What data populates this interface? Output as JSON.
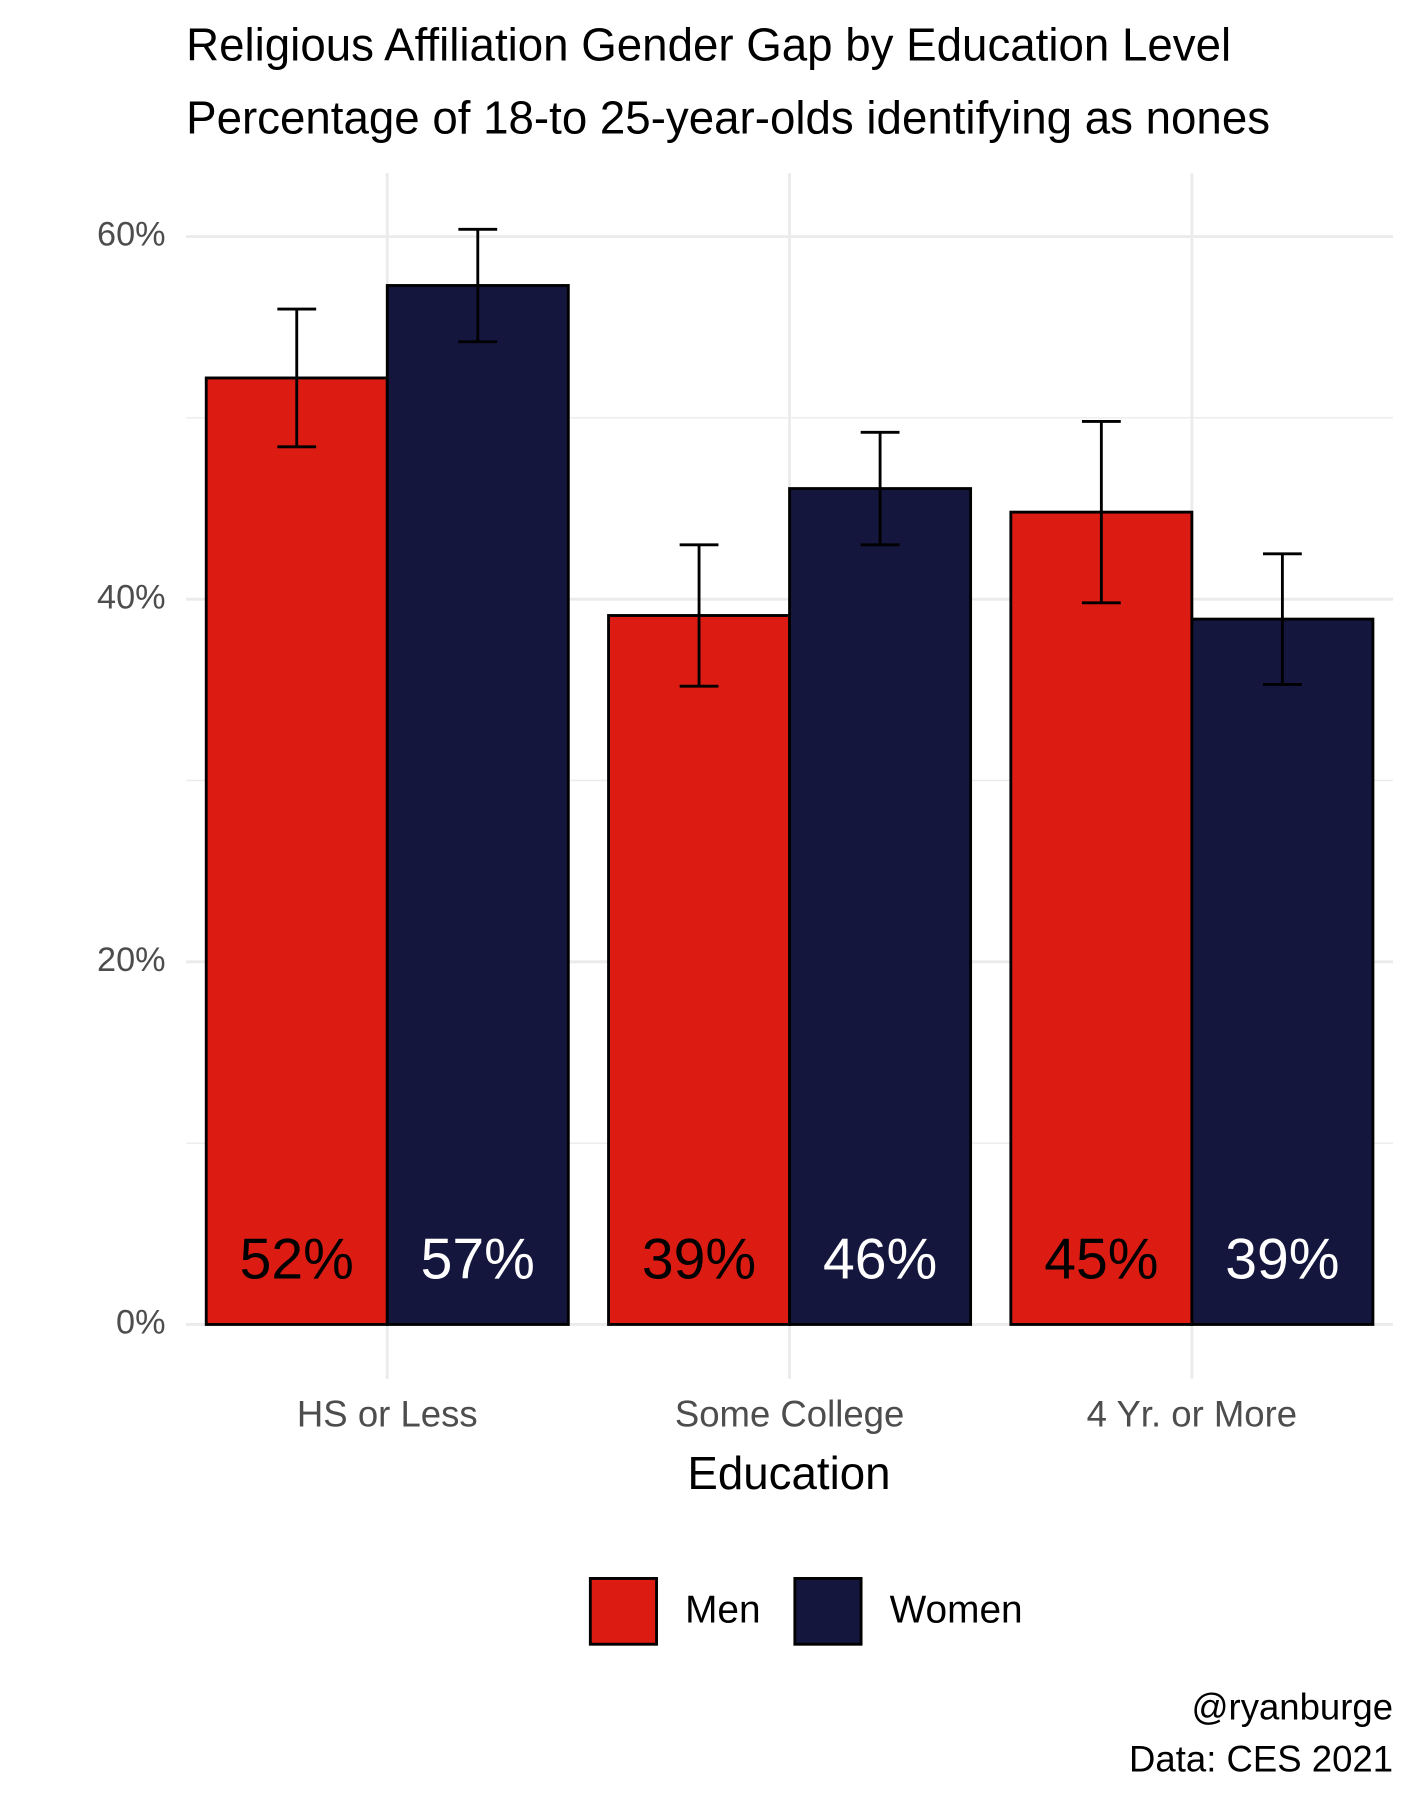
{
  "chart_data": {
    "type": "bar",
    "title": "Religious Affiliation Gender Gap by Education Level",
    "subtitle": "Percentage of 18-to 25-year-olds identifying as nones",
    "x_label": "Education",
    "categories": [
      "HS or Less",
      "Some College",
      "4 Yr. or More"
    ],
    "series": [
      {
        "name": "Men",
        "color": "#dc1c13",
        "label_color": "#000000",
        "values": [
          52.2,
          39.1,
          44.8
        ],
        "errors": [
          3.8,
          3.9,
          5.0
        ],
        "value_labels": [
          "52%",
          "39%",
          "45%"
        ]
      },
      {
        "name": "Women",
        "color": "#15163d",
        "label_color": "#ffffff",
        "values": [
          57.3,
          46.1,
          38.9
        ],
        "errors": [
          3.1,
          3.1,
          3.6
        ],
        "value_labels": [
          "57%",
          "46%",
          "39%"
        ]
      }
    ],
    "ylim": [
      -3,
      63.5
    ],
    "yticks": [
      {
        "value": 0,
        "label": "0%"
      },
      {
        "value": 20,
        "label": "20%"
      },
      {
        "value": 40,
        "label": "40%"
      },
      {
        "value": 60,
        "label": "60%"
      }
    ],
    "minor_yticks": [
      10,
      30,
      50
    ],
    "grid": true,
    "legend": "bottom",
    "caption": [
      "@ryanburge",
      "Data: CES 2021"
    ]
  }
}
